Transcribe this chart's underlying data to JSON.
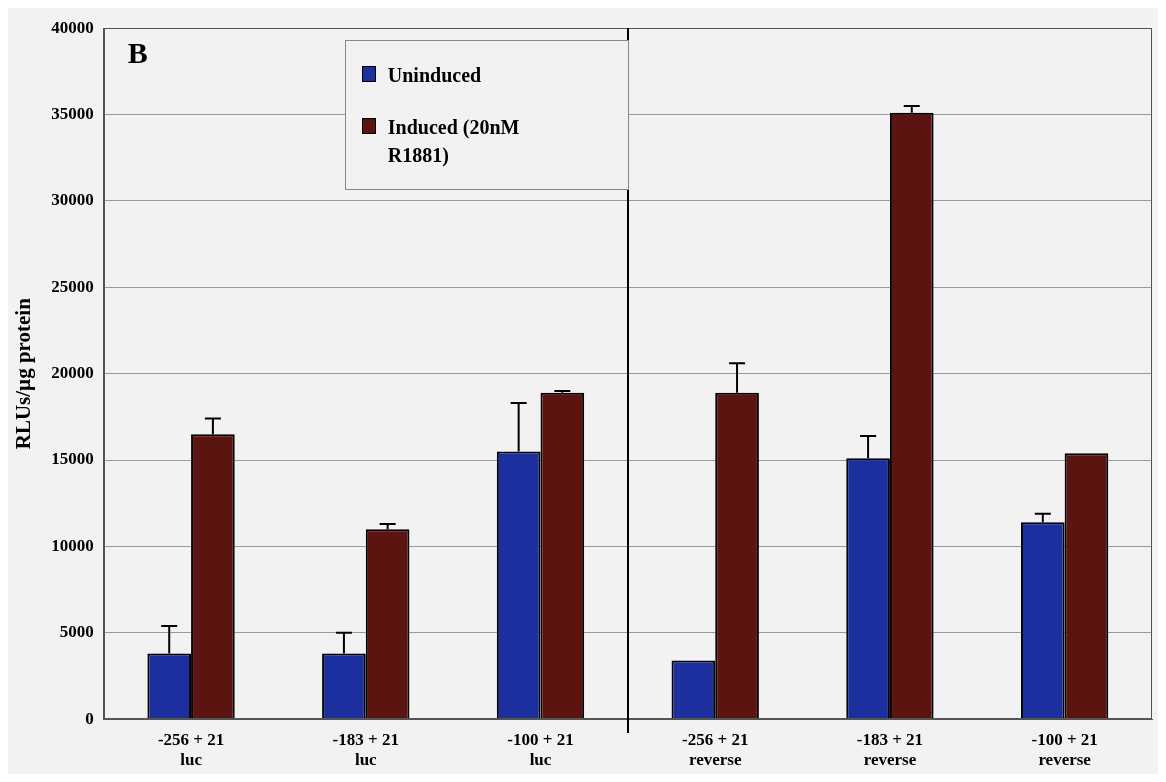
{
  "chart_data": {
    "type": "bar",
    "ylabel": "RLUs/µg protein",
    "annotations": [
      "B"
    ],
    "categories": [
      "-256 + 21 luc",
      "-183 + 21 luc",
      "-100 + 21 luc",
      "-256 + 21 reverse",
      "-183 + 21 reverse",
      "-100 + 21 reverse"
    ],
    "series": [
      {
        "name": "Uninduced",
        "color": "#1c2f9e",
        "values": [
          3800,
          3800,
          15500,
          3400,
          15100,
          11400
        ],
        "errors": [
          [
            3800,
            5400
          ],
          [
            3800,
            5000
          ],
          [
            15500,
            18300
          ],
          null,
          [
            15100,
            16400
          ],
          [
            11400,
            11900
          ]
        ]
      },
      {
        "name": "Induced (20nM R1881)",
        "color": "#5c1410",
        "values": [
          16500,
          11000,
          18900,
          18900,
          35100,
          15400
        ],
        "errors": [
          [
            16500,
            17400
          ],
          [
            11000,
            11300
          ],
          [
            18900,
            19000
          ],
          [
            18900,
            20600
          ],
          [
            35100,
            35500
          ],
          null
        ]
      }
    ],
    "ylim": [
      0,
      40000
    ],
    "yticks": [
      0,
      5000,
      10000,
      15000,
      20000,
      25000,
      30000,
      35000,
      40000
    ],
    "grid": "y",
    "legend": "top left"
  }
}
